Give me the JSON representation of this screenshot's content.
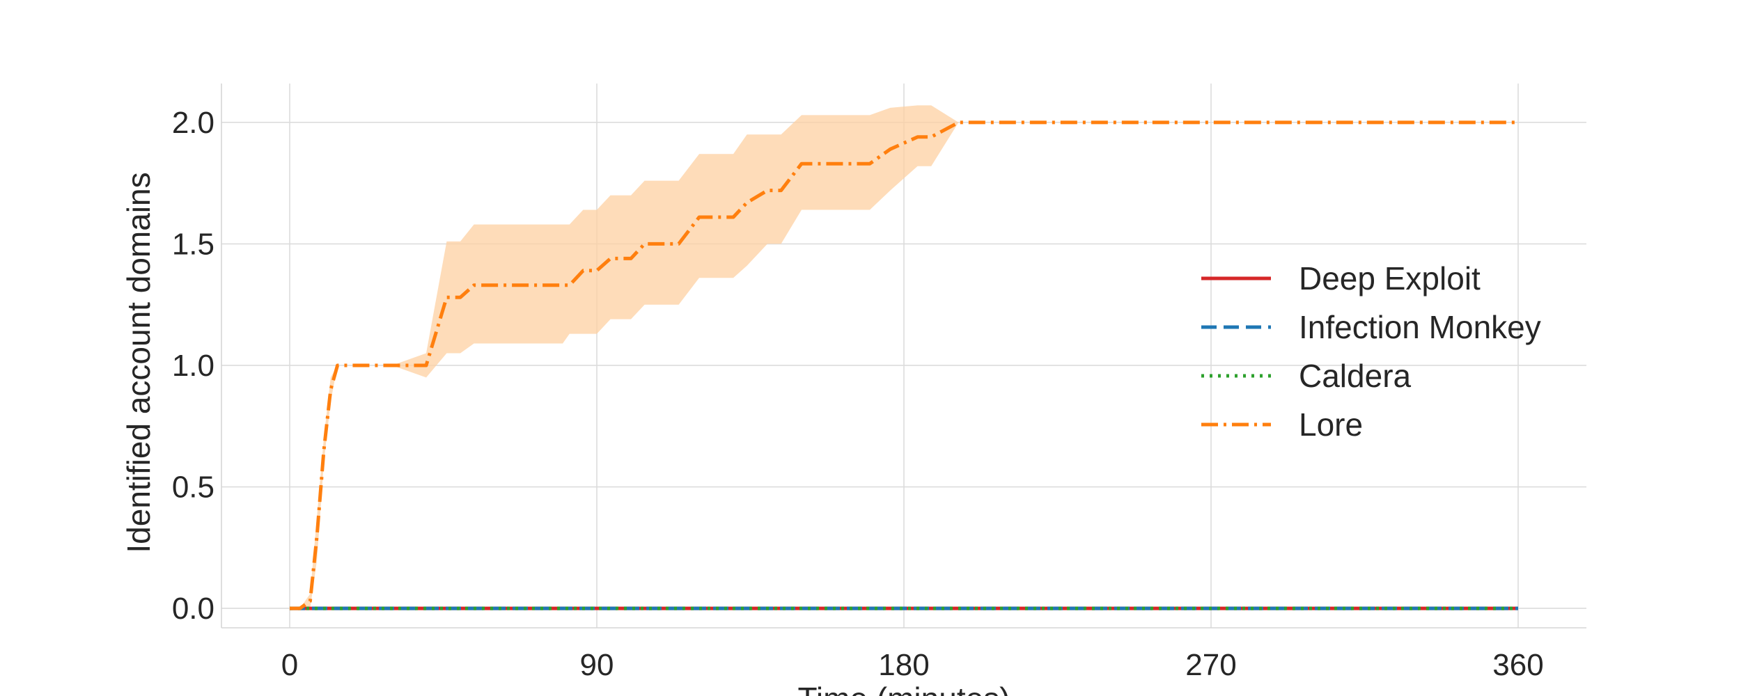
{
  "chart_data": {
    "type": "line",
    "title": "",
    "xlabel": "Time (minutes)",
    "ylabel": "Identified account domains",
    "xlim": [
      -20,
      380
    ],
    "ylim": [
      -0.08,
      2.16
    ],
    "xticks": [
      0,
      90,
      180,
      270,
      360
    ],
    "yticks": [
      0.0,
      0.5,
      1.0,
      1.5,
      2.0
    ],
    "xtick_labels": [
      "0",
      "90",
      "180",
      "270",
      "360"
    ],
    "ytick_labels": [
      "0.0",
      "0.5",
      "1.0",
      "1.5",
      "2.0"
    ],
    "grid": true,
    "legend_position": "center-right",
    "series": [
      {
        "name": "Deep Exploit",
        "color": "#d62728",
        "style": "solid",
        "x": [
          0,
          360
        ],
        "y": [
          0,
          0
        ]
      },
      {
        "name": "Infection Monkey",
        "color": "#1f77b4",
        "style": "dashed",
        "x": [
          0,
          360
        ],
        "y": [
          0,
          0
        ]
      },
      {
        "name": "Caldera",
        "color": "#2ca02c",
        "style": "dotted",
        "x": [
          0,
          360
        ],
        "y": [
          0,
          0
        ]
      },
      {
        "name": "Lore",
        "color": "#ff7f0e",
        "style": "dashdot",
        "x": [
          0,
          3,
          6,
          8,
          10,
          12,
          14,
          18,
          30,
          40,
          46,
          50,
          54,
          60,
          80,
          82,
          86,
          90,
          94,
          100,
          104,
          110,
          114,
          120,
          124,
          130,
          134,
          140,
          144,
          150,
          156,
          164,
          170,
          176,
          184,
          188,
          196,
          360
        ],
        "y": [
          0,
          0,
          0.03,
          0.3,
          0.65,
          0.9,
          1.0,
          1.0,
          1.0,
          1.0,
          1.28,
          1.28,
          1.33,
          1.33,
          1.33,
          1.33,
          1.39,
          1.39,
          1.44,
          1.44,
          1.5,
          1.5,
          1.5,
          1.61,
          1.61,
          1.61,
          1.67,
          1.72,
          1.72,
          1.83,
          1.83,
          1.83,
          1.83,
          1.89,
          1.94,
          1.94,
          2.0,
          2.0
        ],
        "band_lower": [
          0,
          0,
          0.0,
          0.2,
          0.6,
          0.85,
          1.0,
          1.0,
          1.0,
          0.95,
          1.05,
          1.05,
          1.09,
          1.09,
          1.09,
          1.13,
          1.13,
          1.13,
          1.19,
          1.19,
          1.25,
          1.25,
          1.25,
          1.36,
          1.36,
          1.36,
          1.41,
          1.5,
          1.5,
          1.64,
          1.64,
          1.64,
          1.64,
          1.72,
          1.82,
          1.82,
          2.0,
          2.0
        ],
        "band_upper": [
          0,
          0,
          0.06,
          0.38,
          0.7,
          0.95,
          1.0,
          1.0,
          1.0,
          1.05,
          1.51,
          1.51,
          1.58,
          1.58,
          1.58,
          1.58,
          1.64,
          1.64,
          1.7,
          1.7,
          1.76,
          1.76,
          1.76,
          1.87,
          1.87,
          1.87,
          1.95,
          1.95,
          1.95,
          2.03,
          2.03,
          2.03,
          2.03,
          2.06,
          2.07,
          2.07,
          2.0,
          2.0
        ],
        "band_color": "#fdd0a2"
      }
    ]
  }
}
